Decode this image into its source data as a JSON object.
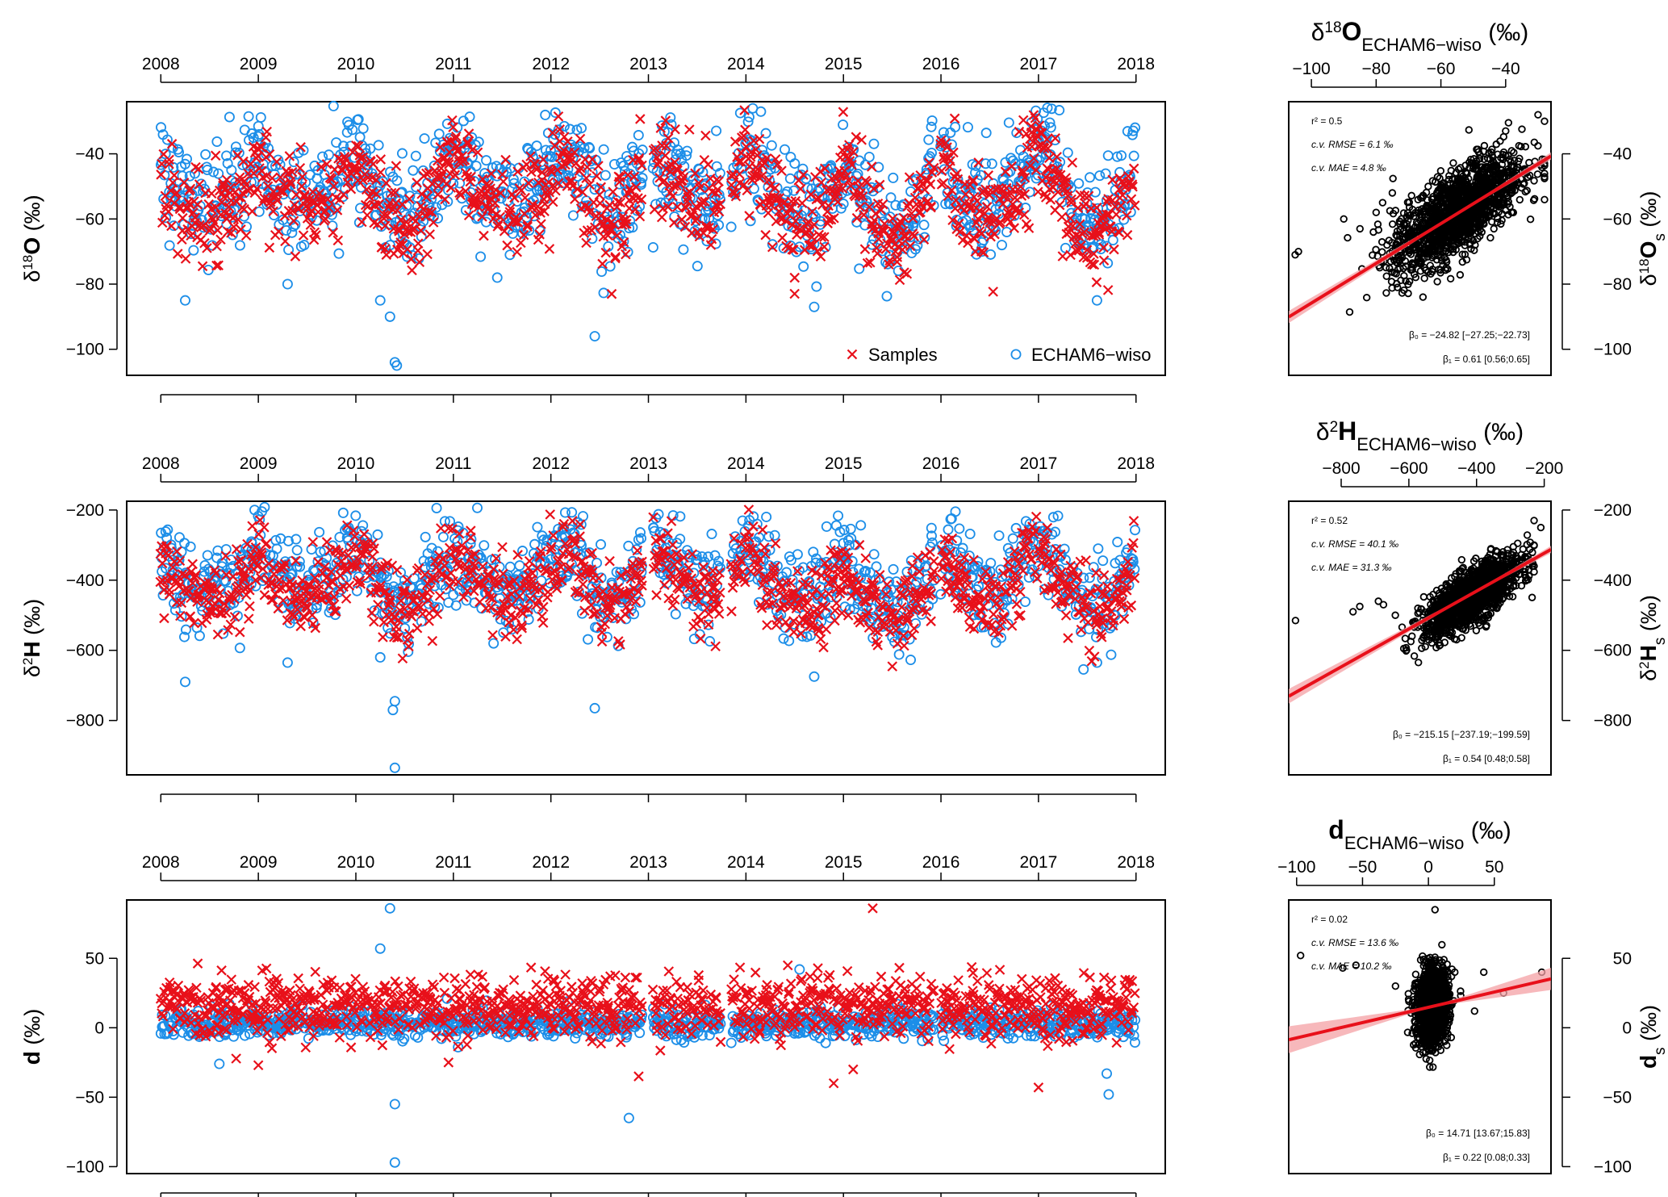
{
  "chart_data": [
    {
      "id": "d18O-ts",
      "type": "scatter",
      "title": "",
      "xlabel": "",
      "ylabel": "δ18O (‰)",
      "ylabel_parts": {
        "pre": "δ",
        "sup": "18",
        "bold": "O",
        "post": " (‰)"
      },
      "xlim": [
        2007.65,
        2018.3
      ],
      "ylim": [
        -108,
        -24
      ],
      "x_ticks": [
        2008,
        2009,
        2010,
        2011,
        2012,
        2013,
        2014,
        2015,
        2016,
        2017,
        2018
      ],
      "x_tick_labels": [
        "2008",
        "2009",
        "2010",
        "2011",
        "2012",
        "2013",
        "2014",
        "2015",
        "2016",
        "2017",
        "2018"
      ],
      "y_ticks": [
        -100,
        -80,
        -60,
        -40
      ],
      "y_tick_labels": [
        "−100",
        "−80",
        "−60",
        "−40"
      ],
      "legend": [
        {
          "name": "Samples",
          "marker": "x",
          "color": "#e8101a"
        },
        {
          "name": "ECHAM6−wiso",
          "marker": "o",
          "color": "#1c8ee8"
        }
      ],
      "legend_position": "bottom-right",
      "profile": {
        "times": [
          2008.0,
          2008.2,
          2008.4,
          2008.6,
          2008.8,
          2009.0,
          2009.2,
          2009.4,
          2009.6,
          2009.8,
          2010.0,
          2010.2,
          2010.4,
          2010.55,
          2010.7,
          2010.85,
          2011.0,
          2011.2,
          2011.4,
          2011.6,
          2011.8,
          2012.0,
          2012.2,
          2012.4,
          2012.55,
          2012.7,
          2012.85,
          2013.0,
          2013.2,
          2013.4,
          2013.6,
          2013.8,
          2014.0,
          2014.2,
          2014.4,
          2014.6,
          2014.8,
          2015.0,
          2015.2,
          2015.4,
          2015.55,
          2015.7,
          2015.85,
          2016.0,
          2016.2,
          2016.4,
          2016.6,
          2016.8,
          2017.0,
          2017.2,
          2017.4,
          2017.55,
          2017.7,
          2017.85,
          2018.0
        ],
        "mean": [
          -46,
          -55,
          -60,
          -58,
          -52,
          -44,
          -52,
          -57,
          -55,
          -52,
          -42,
          -52,
          -63,
          -66,
          -58,
          -50,
          -40,
          -48,
          -55,
          -60,
          -54,
          -46,
          -42,
          -55,
          -62,
          -60,
          -52,
          -40,
          -46,
          -55,
          -58,
          -54,
          -40,
          -50,
          -60,
          -62,
          -58,
          -46,
          -56,
          -65,
          -68,
          -62,
          -55,
          -42,
          -52,
          -60,
          -58,
          -50,
          -38,
          -50,
          -62,
          -66,
          -64,
          -56,
          -44
        ],
        "spread": 7,
        "outliers": [
          [
            2008.25,
            -85
          ],
          [
            2010.25,
            -85
          ],
          [
            2010.35,
            -90
          ],
          [
            2010.4,
            -104
          ],
          [
            2010.42,
            -105
          ],
          [
            2011.45,
            -78
          ],
          [
            2012.45,
            -96
          ],
          [
            2014.7,
            -87
          ],
          [
            2017.6,
            -85
          ],
          [
            2009.3,
            -80
          ]
        ]
      },
      "stats": {
        "r2": "r² = 0.5",
        "rmse": "c.v. RMSE = 6.1 ‰",
        "mae": "c.v. MAE = 4.8 ‰",
        "beta0": "β₀ = −24.82 [−27.25;−22.73]",
        "beta1": "β₁ = 0.61 [0.56;0.65]"
      }
    },
    {
      "id": "d18O-sc",
      "type": "scatter",
      "title": "δ18O ECHAM6−wiso (‰)",
      "title_parts": {
        "pre": "δ",
        "sup": "18",
        "bold": "O",
        "sub": "ECHAM6−wiso",
        "post": " (‰)"
      },
      "xlabel": "δ18O ECHAM6−wiso (‰)",
      "ylabel": "δ18O s (‰)",
      "ylabel_parts": {
        "pre": "δ",
        "sup": "18",
        "bold": "O",
        "sub": "s",
        "post": " (‰)"
      },
      "xlim": [
        -107,
        -26
      ],
      "ylim": [
        -108,
        -24
      ],
      "x_ticks": [
        -100,
        -80,
        -60,
        -40
      ],
      "x_tick_labels": [
        "−100",
        "−80",
        "−60",
        "−40"
      ],
      "y_ticks": [
        -100,
        -80,
        -60,
        -40
      ],
      "y_tick_labels": [
        "−100",
        "−80",
        "−60",
        "−40"
      ],
      "regression": {
        "intercept": -24.82,
        "slope": 0.61,
        "ci_intercept": [
          -27.25,
          -22.73
        ],
        "ci_slope": [
          0.56,
          0.65
        ],
        "r2": 0.5
      },
      "cloud": {
        "center": [
          -55,
          -58
        ],
        "sx": 10,
        "sy": 9,
        "rho": 0.7,
        "xmin": -95,
        "xmax": -28,
        "extra": [
          [
            -105,
            -71
          ],
          [
            -104,
            -70
          ],
          [
            -85,
            -63
          ],
          [
            -80,
            -58
          ],
          [
            -78,
            -55
          ],
          [
            -75,
            -52
          ],
          [
            -90,
            -60
          ],
          [
            -30,
            -28
          ],
          [
            -28,
            -30
          ],
          [
            -40,
            -33
          ]
        ]
      },
      "stats": {
        "r2": "r² = 0.5",
        "rmse": "c.v. RMSE = 6.1 ‰",
        "mae": "c.v. MAE = 4.8 ‰",
        "beta0": "β₀ = −24.82 [−27.25;−22.73]",
        "beta1": "β₁ = 0.61 [0.56;0.65]"
      }
    },
    {
      "id": "d2H-ts",
      "type": "scatter",
      "title": "",
      "xlabel": "",
      "ylabel": "δ2H (‰)",
      "ylabel_parts": {
        "pre": "δ",
        "sup": "2",
        "bold": "H",
        "post": " (‰)"
      },
      "xlim": [
        2007.65,
        2018.3
      ],
      "ylim": [
        -955,
        -175
      ],
      "x_ticks": [
        2008,
        2009,
        2010,
        2011,
        2012,
        2013,
        2014,
        2015,
        2016,
        2017,
        2018
      ],
      "x_tick_labels": [
        "2008",
        "2009",
        "2010",
        "2011",
        "2012",
        "2013",
        "2014",
        "2015",
        "2016",
        "2017",
        "2018"
      ],
      "y_ticks": [
        -800,
        -600,
        -400,
        -200
      ],
      "y_tick_labels": [
        "−800",
        "−600",
        "−400",
        "−200"
      ],
      "profile": {
        "times": [
          2008.0,
          2008.2,
          2008.4,
          2008.6,
          2008.8,
          2009.0,
          2009.2,
          2009.4,
          2009.6,
          2009.8,
          2010.0,
          2010.2,
          2010.4,
          2010.55,
          2010.7,
          2010.85,
          2011.0,
          2011.2,
          2011.4,
          2011.6,
          2011.8,
          2012.0,
          2012.2,
          2012.4,
          2012.55,
          2012.7,
          2012.85,
          2013.0,
          2013.2,
          2013.4,
          2013.6,
          2013.8,
          2014.0,
          2014.2,
          2014.4,
          2014.6,
          2014.8,
          2015.0,
          2015.2,
          2015.4,
          2015.55,
          2015.7,
          2015.85,
          2016.0,
          2016.2,
          2016.4,
          2016.6,
          2016.8,
          2017.0,
          2017.2,
          2017.4,
          2017.55,
          2017.7,
          2017.85,
          2018.0
        ],
        "mean": [
          -360,
          -420,
          -460,
          -450,
          -410,
          -340,
          -400,
          -445,
          -430,
          -410,
          -320,
          -400,
          -480,
          -510,
          -450,
          -390,
          -320,
          -380,
          -430,
          -465,
          -420,
          -360,
          -330,
          -430,
          -480,
          -465,
          -410,
          -320,
          -360,
          -430,
          -450,
          -420,
          -310,
          -390,
          -465,
          -480,
          -450,
          -360,
          -435,
          -500,
          -525,
          -480,
          -430,
          -330,
          -400,
          -465,
          -450,
          -390,
          -290,
          -390,
          -480,
          -510,
          -495,
          -435,
          -340
        ],
        "spread": 55,
        "outliers": [
          [
            2008.25,
            -690
          ],
          [
            2009.3,
            -635
          ],
          [
            2010.25,
            -620
          ],
          [
            2010.4,
            -745
          ],
          [
            2010.38,
            -770
          ],
          [
            2010.4,
            -935
          ],
          [
            2012.45,
            -765
          ],
          [
            2014.7,
            -675
          ],
          [
            2017.6,
            -635
          ]
        ]
      }
    },
    {
      "id": "d2H-sc",
      "type": "scatter",
      "title": "δ2H ECHAM6−wiso (‰)",
      "title_parts": {
        "pre": "δ",
        "sup": "2",
        "bold": "H",
        "sub": "ECHAM6−wiso",
        "post": " (‰)"
      },
      "xlabel": "δ2H ECHAM6−wiso (‰)",
      "ylabel": "δ2H s (‰)",
      "ylabel_parts": {
        "pre": "δ",
        "sup": "2",
        "bold": "H",
        "sub": "s",
        "post": " (‰)"
      },
      "xlim": [
        -955,
        -180
      ],
      "ylim": [
        -955,
        -175
      ],
      "x_ticks": [
        -800,
        -600,
        -400,
        -200
      ],
      "x_tick_labels": [
        "−800",
        "−600",
        "−400",
        "−200"
      ],
      "y_ticks": [
        -800,
        -600,
        -400,
        -200
      ],
      "y_tick_labels": [
        "−800",
        "−600",
        "−400",
        "−200"
      ],
      "regression": {
        "intercept": -215.15,
        "slope": 0.54,
        "ci_intercept": [
          -237.19,
          -199.59
        ],
        "ci_slope": [
          0.48,
          0.58
        ],
        "r2": 0.52
      },
      "cloud": {
        "center": [
          -415,
          -445
        ],
        "sx": 70,
        "sy": 55,
        "rho": 0.75,
        "xmin": -620,
        "xmax": -230,
        "extra": [
          [
            -935,
            -515
          ],
          [
            -765,
            -490
          ],
          [
            -745,
            -475
          ],
          [
            -690,
            -460
          ],
          [
            -675,
            -470
          ],
          [
            -230,
            -230
          ],
          [
            -210,
            -250
          ],
          [
            -640,
            -500
          ]
        ]
      },
      "stats": {
        "r2": "r² = 0.52",
        "rmse": "c.v. RMSE = 40.1 ‰",
        "mae": "c.v. MAE = 31.3 ‰",
        "beta0": "β₀ = −215.15 [−237.19;−199.59]",
        "beta1": "β₁ = 0.54 [0.48;0.58]"
      }
    },
    {
      "id": "d-ts",
      "type": "scatter",
      "title": "",
      "xlabel": "",
      "ylabel": "d (‰)",
      "ylabel_parts": {
        "pre": "",
        "sup": "",
        "bold": "d",
        "post": " (‰)"
      },
      "xlim": [
        2007.65,
        2018.3
      ],
      "ylim": [
        -105,
        92
      ],
      "x_ticks": [
        2008,
        2009,
        2010,
        2011,
        2012,
        2013,
        2014,
        2015,
        2016,
        2017,
        2018
      ],
      "x_tick_labels": [
        "2008",
        "2009",
        "2010",
        "2011",
        "2012",
        "2013",
        "2014",
        "2015",
        "2016",
        "2017",
        "2018"
      ],
      "y_ticks": [
        -100,
        -50,
        0,
        50
      ],
      "y_tick_labels": [
        "−100",
        "−50",
        "0",
        "50"
      ],
      "profile": {
        "samples_mean": 15,
        "samples_spread": 11,
        "echam_mean": 3,
        "echam_spread": 5,
        "outliers_samples": [
          [
            2009.0,
            -27
          ],
          [
            2010.95,
            -25
          ],
          [
            2012.9,
            -35
          ],
          [
            2014.9,
            -40
          ],
          [
            2015.1,
            -30
          ],
          [
            2015.3,
            86
          ],
          [
            2017.0,
            -43
          ]
        ],
        "outliers_echam": [
          [
            2010.35,
            86
          ],
          [
            2010.25,
            57
          ],
          [
            2010.4,
            -55
          ],
          [
            2010.4,
            -97
          ],
          [
            2012.8,
            -65
          ],
          [
            2014.55,
            42
          ],
          [
            2017.7,
            -33
          ],
          [
            2017.72,
            -48
          ],
          [
            2008.6,
            -26
          ]
        ]
      }
    },
    {
      "id": "d-sc",
      "type": "scatter",
      "title": "d ECHAM6−wiso (‰)",
      "title_parts": {
        "pre": "",
        "sup": "",
        "bold": "d",
        "sub": "ECHAM6−wiso",
        "post": " (‰)"
      },
      "xlabel": "d ECHAM6−wiso (‰)",
      "ylabel": "d s (‰)",
      "ylabel_parts": {
        "pre": "",
        "sup": "",
        "bold": "d",
        "sub": "s",
        "post": " (‰)"
      },
      "xlim": [
        -106,
        93
      ],
      "ylim": [
        -105,
        92
      ],
      "x_ticks": [
        -100,
        -50,
        0,
        50
      ],
      "x_tick_labels": [
        "−100",
        "−50",
        "0",
        "50"
      ],
      "y_ticks": [
        -100,
        -50,
        0,
        50
      ],
      "y_tick_labels": [
        "−100",
        "−50",
        "0",
        "50"
      ],
      "regression": {
        "intercept": 14.71,
        "slope": 0.22,
        "ci_intercept": [
          13.67,
          15.83
        ],
        "ci_slope": [
          0.08,
          0.33
        ],
        "r2": 0.02
      },
      "cloud": {
        "center": [
          3,
          15
        ],
        "sx": 6,
        "sy": 13,
        "rho": 0.15,
        "xmin": -20,
        "xmax": 30,
        "extra": [
          [
            -97,
            52
          ],
          [
            -65,
            43
          ],
          [
            -55,
            45
          ],
          [
            -25,
            30
          ],
          [
            57,
            25
          ],
          [
            86,
            40
          ],
          [
            42,
            40
          ],
          [
            -10,
            28
          ],
          [
            35,
            12
          ],
          [
            20,
            40
          ],
          [
            5,
            85
          ]
        ]
      },
      "stats": {
        "r2": "r² = 0.02",
        "rmse": "c.v. RMSE = 13.6 ‰",
        "mae": "c.v. MAE = 10.2 ‰",
        "beta0": "β₀ = 14.71 [13.67;15.83]",
        "beta1": "β₁ = 0.22 [0.08;0.33]"
      }
    }
  ],
  "legend_labels": {
    "samples": "Samples",
    "echam": "ECHAM6−wiso"
  },
  "colors": {
    "samples": "#e8101a",
    "echam": "#1c8ee8",
    "scatter_points": "#000000",
    "regression": "#e8101a",
    "ci_band": "#f4a0a4"
  }
}
